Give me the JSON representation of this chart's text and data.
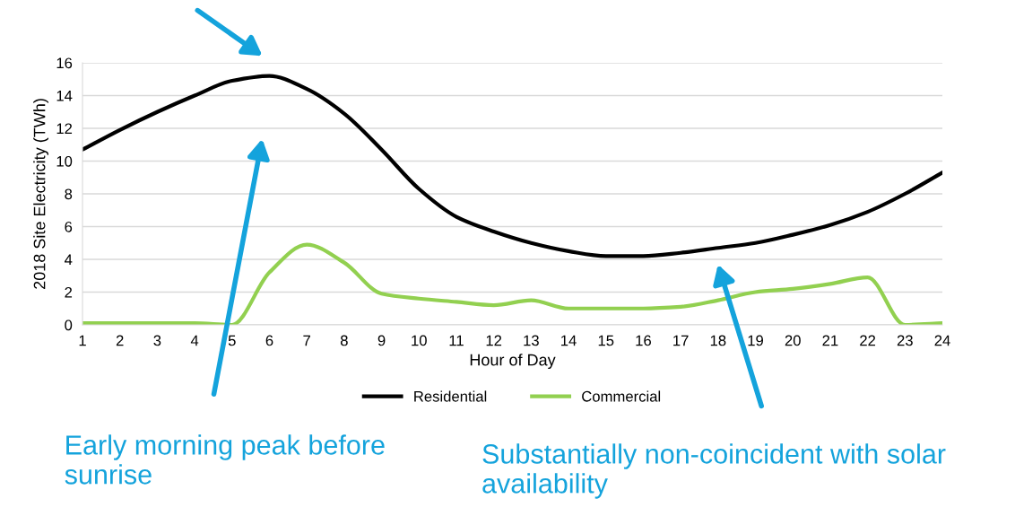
{
  "chart_data": {
    "type": "line",
    "xlabel": "Hour of Day",
    "ylabel": "2018 Site Electricity (TWh)",
    "categories": [
      "1",
      "2",
      "3",
      "4",
      "5",
      "6",
      "7",
      "8",
      "9",
      "10",
      "11",
      "12",
      "13",
      "14",
      "15",
      "16",
      "17",
      "18",
      "19",
      "20",
      "21",
      "22",
      "23",
      "24"
    ],
    "series": [
      {
        "name": "Residential",
        "color": "#000000",
        "values": [
          10.7,
          11.9,
          13.0,
          14.0,
          14.9,
          15.2,
          14.4,
          12.9,
          10.7,
          8.3,
          6.6,
          5.7,
          5.0,
          4.5,
          4.2,
          4.2,
          4.4,
          4.7,
          5.0,
          5.5,
          6.1,
          6.9,
          8.0,
          9.3
        ]
      },
      {
        "name": "Commercial",
        "color": "#92d050",
        "values": [
          0.1,
          0.1,
          0.1,
          0.1,
          0.0,
          3.2,
          4.9,
          3.8,
          1.9,
          1.6,
          1.4,
          1.2,
          1.5,
          1.0,
          1.0,
          1.0,
          1.1,
          1.5,
          2.0,
          2.2,
          2.5,
          2.9,
          0.0,
          0.1
        ]
      }
    ],
    "ylim": [
      0,
      16
    ],
    "yticks": [
      0,
      2,
      4,
      6,
      8,
      10,
      12,
      14,
      16
    ],
    "grid": "y",
    "legend": "bottom",
    "marker": "none",
    "line_style": "solid",
    "annotations": [
      "Early morning peak before sunrise",
      "Substantially non-coincident with solar availability"
    ]
  }
}
